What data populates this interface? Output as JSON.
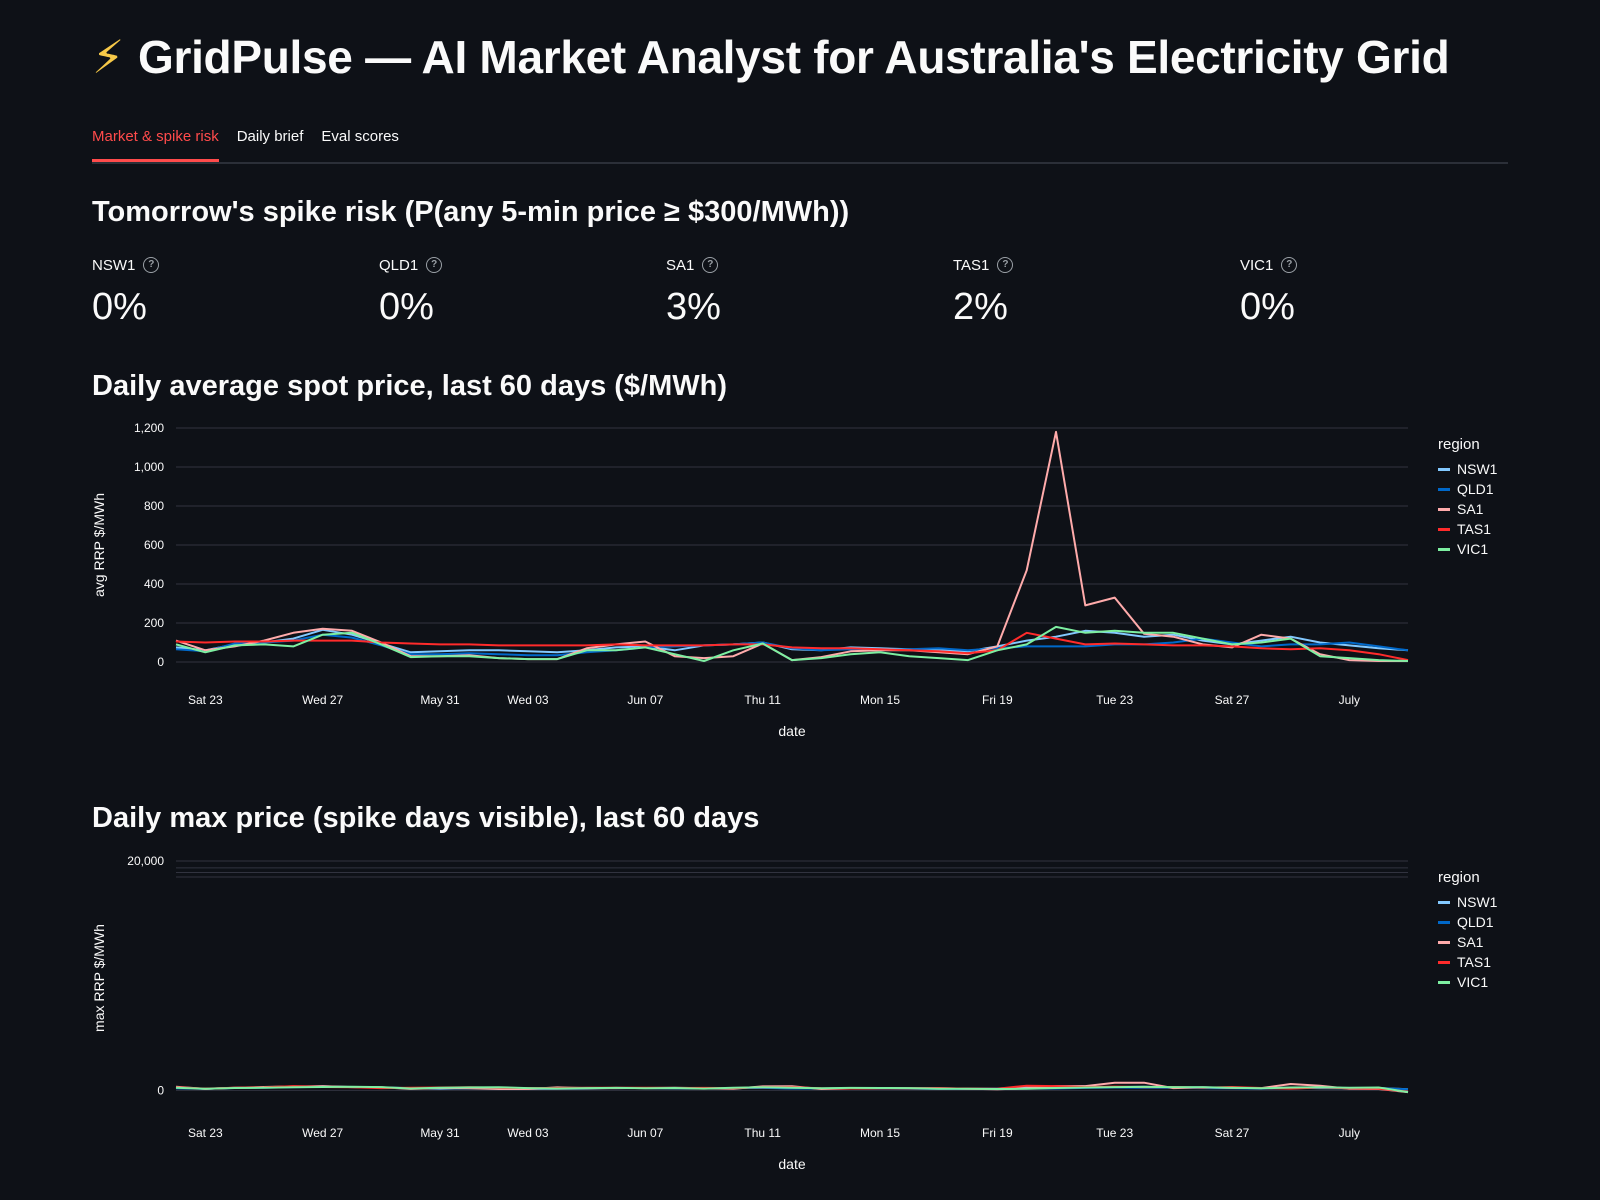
{
  "header": {
    "icon": "lightning-bolt-icon",
    "title": "GridPulse — AI Market Analyst for Australia's Electricity Grid"
  },
  "tabs": [
    {
      "label": "Market & spike risk",
      "active": true
    },
    {
      "label": "Daily brief",
      "active": false
    },
    {
      "label": "Eval scores",
      "active": false
    }
  ],
  "spike_risk": {
    "heading": "Tomorrow's spike risk (P(any 5-min price ≥ $300/MWh))",
    "metrics": [
      {
        "region": "NSW1",
        "value": "0%"
      },
      {
        "region": "QLD1",
        "value": "0%"
      },
      {
        "region": "SA1",
        "value": "3%"
      },
      {
        "region": "TAS1",
        "value": "2%"
      },
      {
        "region": "VIC1",
        "value": "0%"
      }
    ]
  },
  "avg_section": {
    "heading": "Daily average spot price, last 60 days ($/MWh)"
  },
  "max_section": {
    "heading": "Daily max price (spike days visible), last 60 days"
  },
  "colors": {
    "NSW1": "#83c9ff",
    "QLD1": "#0068c9",
    "SA1": "#ffabab",
    "TAS1": "#ff2b2b",
    "VIC1": "#7defa1"
  },
  "chart_data": [
    {
      "type": "line",
      "title": "Daily average spot price, last 60 days ($/MWh)",
      "xlabel": "date",
      "ylabel": "avg RRP $/MWh",
      "ylim": [
        0,
        1200
      ],
      "yticks": [
        "0",
        "200",
        "400",
        "600",
        "800",
        "1,000",
        "1,200"
      ],
      "xtick_labels": [
        "Sat 23",
        "Wed 27",
        "May 31",
        "Wed 03",
        "Jun 07",
        "Thu 11",
        "Mon 15",
        "Fri 19",
        "Tue 23",
        "Sat 27",
        "July"
      ],
      "xtick_days": [
        1,
        5,
        9,
        12,
        16,
        20,
        24,
        28,
        32,
        36,
        40
      ],
      "x_start_label": "May 22",
      "x_end_day": 42,
      "legend_title": "region",
      "legend_position": "right",
      "grid": true,
      "series": [
        {
          "name": "NSW1",
          "values": [
            75,
            60,
            90,
            100,
            120,
            165,
            140,
            95,
            50,
            55,
            60,
            60,
            55,
            50,
            60,
            75,
            80,
            60,
            85,
            90,
            100,
            65,
            60,
            75,
            70,
            65,
            60,
            55,
            80,
            110,
            130,
            160,
            150,
            130,
            140,
            110,
            90,
            110,
            130,
            100,
            85,
            70,
            60
          ]
        },
        {
          "name": "QLD1",
          "values": [
            65,
            55,
            95,
            100,
            110,
            140,
            125,
            85,
            40,
            40,
            45,
            40,
            35,
            35,
            50,
            60,
            75,
            80,
            85,
            90,
            100,
            70,
            60,
            65,
            60,
            65,
            70,
            60,
            70,
            80,
            80,
            80,
            90,
            90,
            100,
            120,
            100,
            80,
            90,
            90,
            100,
            80,
            60
          ]
        },
        {
          "name": "SA1",
          "values": [
            110,
            60,
            80,
            110,
            150,
            170,
            160,
            100,
            30,
            30,
            35,
            20,
            15,
            15,
            70,
            90,
            105,
            30,
            20,
            30,
            95,
            10,
            25,
            55,
            60,
            60,
            50,
            40,
            80,
            470,
            1180,
            290,
            330,
            145,
            130,
            90,
            75,
            140,
            120,
            40,
            10,
            5,
            5
          ]
        },
        {
          "name": "TAS1",
          "values": [
            105,
            100,
            105,
            105,
            110,
            110,
            110,
            100,
            95,
            90,
            90,
            85,
            85,
            85,
            85,
            90,
            85,
            85,
            85,
            90,
            90,
            75,
            70,
            70,
            65,
            60,
            55,
            45,
            60,
            150,
            120,
            90,
            95,
            90,
            85,
            85,
            80,
            70,
            65,
            70,
            60,
            40,
            10
          ]
        },
        {
          "name": "VIC1",
          "values": [
            90,
            50,
            85,
            90,
            80,
            140,
            150,
            90,
            25,
            30,
            30,
            20,
            15,
            15,
            60,
            60,
            75,
            40,
            5,
            60,
            95,
            10,
            20,
            40,
            50,
            30,
            20,
            10,
            60,
            90,
            180,
            150,
            160,
            150,
            150,
            120,
            90,
            100,
            120,
            30,
            20,
            10,
            5
          ]
        }
      ]
    },
    {
      "type": "line",
      "title": "Daily max price (spike days visible), last 60 days",
      "xlabel": "date",
      "ylabel": "max RRP $/MWh",
      "ylim": [
        -400,
        20000
      ],
      "yticks": [
        "0",
        "20,000"
      ],
      "xtick_labels": [
        "Sat 23",
        "Wed 27",
        "May 31",
        "Wed 03",
        "Jun 07",
        "Thu 11",
        "Mon 15",
        "Fri 19",
        "Tue 23",
        "Sat 27",
        "July"
      ],
      "xtick_days": [
        1,
        5,
        9,
        12,
        16,
        20,
        24,
        28,
        32,
        36,
        40
      ],
      "x_start_label": "May 22",
      "x_end_day": 42,
      "legend_title": "region",
      "legend_position": "right",
      "grid": true,
      "series": [
        {
          "name": "NSW1",
          "values": [
            210,
            140,
            220,
            260,
            310,
            360,
            290,
            250,
            200,
            150,
            190,
            180,
            130,
            150,
            170,
            220,
            200,
            180,
            170,
            210,
            240,
            190,
            160,
            200,
            190,
            170,
            150,
            140,
            170,
            250,
            320,
            280,
            300,
            320,
            260,
            270,
            220,
            190,
            230,
            200,
            180,
            210,
            100
          ]
        },
        {
          "name": "QLD1",
          "values": [
            190,
            150,
            210,
            240,
            280,
            320,
            300,
            260,
            190,
            180,
            170,
            160,
            160,
            210,
            220,
            200,
            210,
            200,
            180,
            200,
            220,
            170,
            170,
            180,
            170,
            160,
            150,
            140,
            160,
            160,
            170,
            220,
            250,
            240,
            230,
            200,
            190,
            160,
            200,
            220,
            200,
            190,
            110
          ]
        },
        {
          "name": "SA1",
          "values": [
            320,
            130,
            230,
            300,
            350,
            370,
            300,
            280,
            130,
            210,
            180,
            120,
            120,
            260,
            200,
            200,
            210,
            240,
            180,
            150,
            350,
            370,
            120,
            170,
            200,
            180,
            200,
            150,
            100,
            180,
            380,
            380,
            670,
            670,
            200,
            260,
            220,
            200,
            560,
            400,
            150,
            120,
            -150
          ]
        },
        {
          "name": "TAS1",
          "values": [
            260,
            160,
            230,
            260,
            380,
            300,
            280,
            200,
            240,
            250,
            280,
            230,
            200,
            210,
            240,
            240,
            230,
            210,
            220,
            200,
            270,
            280,
            190,
            170,
            180,
            190,
            180,
            160,
            150,
            410,
            380,
            290,
            330,
            290,
            300,
            230,
            300,
            210,
            160,
            250,
            180,
            150,
            -100
          ]
        },
        {
          "name": "VIC1",
          "values": [
            240,
            150,
            210,
            230,
            270,
            300,
            320,
            290,
            170,
            240,
            260,
            280,
            200,
            170,
            200,
            220,
            190,
            210,
            160,
            240,
            280,
            230,
            180,
            220,
            210,
            200,
            150,
            140,
            120,
            140,
            210,
            250,
            290,
            310,
            290,
            270,
            240,
            180,
            250,
            280,
            240,
            250,
            -150
          ]
        }
      ]
    }
  ]
}
